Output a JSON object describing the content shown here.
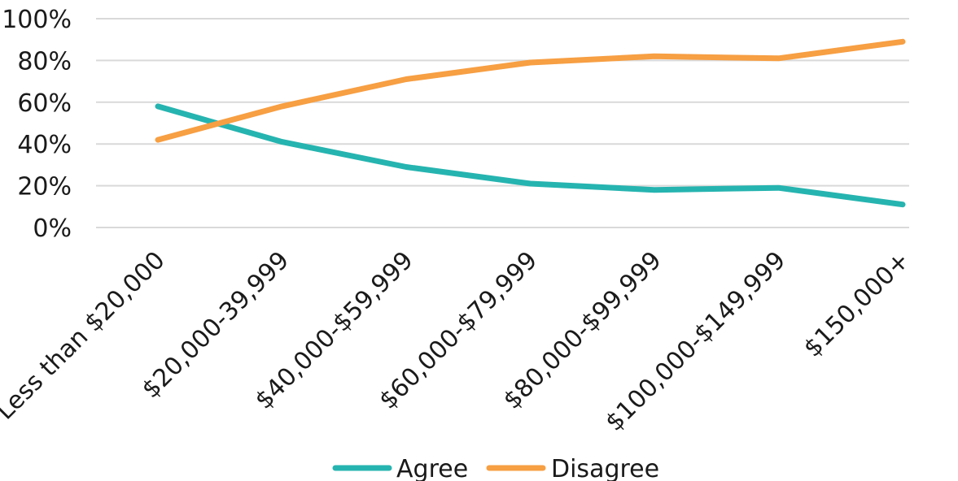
{
  "chart_data": {
    "type": "line",
    "title": "",
    "xlabel": "",
    "ylabel": "",
    "categories": [
      "Less than $20,000",
      "$20,000-39,999",
      "$40,000-$59,999",
      "$60,000-$79,999",
      "$80,000-$99,999",
      "$100,000-$149,999",
      "$150,000+"
    ],
    "series": [
      {
        "name": "Agree",
        "color": "#26b4b0",
        "values": [
          58,
          41,
          29,
          21,
          18,
          19,
          11
        ]
      },
      {
        "name": "Disagree",
        "color": "#f79f43",
        "values": [
          42,
          58,
          71,
          79,
          82,
          81,
          89
        ]
      }
    ],
    "ylim": [
      0,
      100
    ],
    "yticks": [
      "0%",
      "20%",
      "40%",
      "60%",
      "80%",
      "100%"
    ],
    "ytick_values": [
      0,
      20,
      40,
      60,
      80,
      100
    ],
    "grid": true,
    "gridline_color": "#d9d9d9",
    "legend_position": "bottom"
  }
}
